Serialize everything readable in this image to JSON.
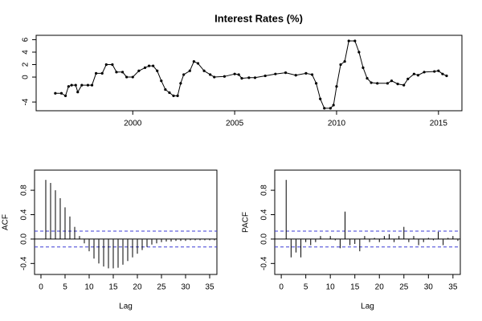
{
  "chart_data": [
    {
      "type": "line",
      "title": "Interest Rates (%)",
      "color": "#000000",
      "x": [
        1996.2,
        1996.5,
        1996.7,
        1996.85,
        1997.0,
        1997.2,
        1997.3,
        1997.5,
        1997.8,
        1998.0,
        1998.2,
        1998.5,
        1998.7,
        1999.0,
        1999.2,
        1999.5,
        1999.7,
        2000.0,
        2000.3,
        2000.6,
        2000.8,
        2001.0,
        2001.2,
        2001.4,
        2001.6,
        2001.8,
        2002.0,
        2002.2,
        2002.35,
        2002.5,
        2002.8,
        2003.0,
        2003.2,
        2003.5,
        2003.8,
        2004.0,
        2004.5,
        2005.0,
        2005.2,
        2005.35,
        2005.7,
        2006.0,
        2006.5,
        2007.0,
        2007.5,
        2008.0,
        2008.5,
        2008.8,
        2009.0,
        2009.2,
        2009.4,
        2009.7,
        2009.85,
        2010.0,
        2010.2,
        2010.4,
        2010.6,
        2010.9,
        2011.1,
        2011.3,
        2011.5,
        2011.7,
        2012.0,
        2012.5,
        2012.7,
        2013.0,
        2013.3,
        2013.5,
        2013.8,
        2014.0,
        2014.3,
        2014.8,
        2015.0,
        2015.2,
        2015.4
      ],
      "values": [
        -2.6,
        -2.6,
        -3.0,
        -1.5,
        -1.3,
        -1.3,
        -2.4,
        -1.3,
        -1.3,
        -1.3,
        0.6,
        0.6,
        2.0,
        2.0,
        0.8,
        0.8,
        0.0,
        0.0,
        1.0,
        1.5,
        1.8,
        1.8,
        1.0,
        -0.6,
        -2.0,
        -2.5,
        -3.0,
        -3.0,
        -1.0,
        0.4,
        1.0,
        2.5,
        2.2,
        1.0,
        0.4,
        0.0,
        0.1,
        0.5,
        0.4,
        -0.2,
        -0.1,
        -0.1,
        0.2,
        0.5,
        0.7,
        0.3,
        0.6,
        0.4,
        -1.0,
        -3.5,
        -5.0,
        -5.0,
        -4.5,
        -1.5,
        2.0,
        2.5,
        5.8,
        5.8,
        4.0,
        1.5,
        -0.2,
        -0.9,
        -1.0,
        -1.0,
        -0.6,
        -1.1,
        -1.3,
        -0.3,
        0.5,
        0.3,
        0.8,
        0.9,
        1.0,
        0.5,
        0.2
      ],
      "xlim": [
        1995.26,
        2016.15
      ],
      "xticks": [
        2000,
        2005,
        2010,
        2015
      ],
      "ylim": [
        -5.4,
        6.7
      ],
      "yticks": [
        -4,
        0,
        2,
        4,
        6
      ]
    },
    {
      "type": "bar",
      "xlabel": "Lag",
      "ylabel": "ACF",
      "color": "#000000",
      "hline_color": "#3b3bd6",
      "x": [
        1,
        2,
        3,
        4,
        5,
        6,
        7,
        8,
        9,
        10,
        11,
        12,
        13,
        14,
        15,
        16,
        17,
        18,
        19,
        20,
        21,
        22,
        23,
        24,
        25,
        26,
        27,
        28,
        29,
        30,
        31,
        32,
        33,
        34,
        35,
        36
      ],
      "values": [
        0.97,
        0.92,
        0.8,
        0.67,
        0.52,
        0.37,
        0.2,
        0.05,
        -0.07,
        -0.2,
        -0.32,
        -0.4,
        -0.45,
        -0.48,
        -0.48,
        -0.47,
        -0.42,
        -0.36,
        -0.3,
        -0.24,
        -0.18,
        -0.13,
        -0.09,
        -0.07,
        -0.05,
        -0.04,
        -0.04,
        -0.03,
        -0.03,
        -0.03,
        -0.02,
        -0.02,
        -0.02,
        -0.02,
        -0.02,
        -0.02
      ],
      "hlines": [
        0.13,
        -0.13
      ],
      "xlim": [
        -1.33,
        36.5
      ],
      "xticks": [
        0,
        5,
        10,
        15,
        20,
        25,
        30,
        35
      ],
      "ylim": [
        -0.58,
        1.13
      ],
      "yticks": [
        -0.4,
        {
          "value": 0,
          "label": "0.0"
        },
        0.4,
        0.8
      ]
    },
    {
      "type": "bar",
      "xlabel": "Lag",
      "ylabel": "PACF",
      "color": "#000000",
      "hline_color": "#3b3bd6",
      "x": [
        1,
        2,
        3,
        4,
        5,
        6,
        7,
        8,
        9,
        10,
        11,
        12,
        13,
        14,
        15,
        16,
        17,
        18,
        19,
        20,
        21,
        22,
        23,
        24,
        25,
        26,
        27,
        28,
        29,
        30,
        31,
        32,
        33,
        34,
        35,
        36
      ],
      "values": [
        0.97,
        -0.3,
        -0.22,
        -0.3,
        -0.05,
        -0.1,
        -0.05,
        0.05,
        0.0,
        0.05,
        -0.02,
        -0.15,
        0.45,
        -0.1,
        -0.08,
        -0.2,
        0.05,
        -0.05,
        0.02,
        -0.05,
        0.05,
        0.08,
        -0.05,
        0.05,
        0.2,
        -0.05,
        0.05,
        -0.1,
        -0.05,
        0.02,
        -0.02,
        0.12,
        -0.1,
        0.02,
        0.05,
        -0.03
      ],
      "hlines": [
        0.13,
        -0.13
      ],
      "xlim": [
        -1.33,
        36.5
      ],
      "xticks": [
        0,
        5,
        10,
        15,
        20,
        25,
        30,
        35
      ],
      "ylim": [
        -0.58,
        1.13
      ],
      "yticks": [
        -0.4,
        {
          "value": 0,
          "label": "0.0"
        },
        0.4,
        0.8
      ]
    }
  ]
}
